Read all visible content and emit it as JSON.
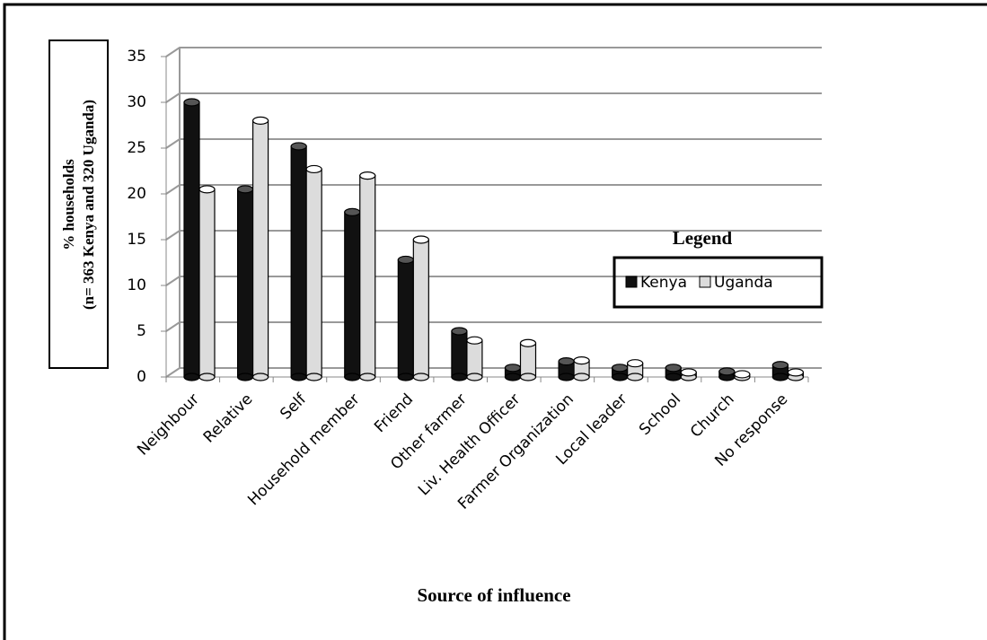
{
  "chart_data": {
    "type": "bar",
    "y_label_line1": "% households",
    "y_label_line2": "(n= 363 Kenya and 320 Uganda)",
    "x_label": "Source of influence",
    "legend_title": "Legend",
    "categories": [
      "Neighbour",
      "Relative",
      "Self",
      "Household member",
      "Friend",
      "Other farmer",
      "Liv. Health Officer",
      "Farmer Organization",
      "Local leader",
      "School",
      "Church",
      "No response"
    ],
    "series": [
      {
        "name": "Kenya",
        "color": "#111111",
        "values": [
          30,
          20.5,
          25.2,
          18,
          12.8,
          5,
          1,
          1.7,
          1,
          1,
          0.6,
          1.3
        ]
      },
      {
        "name": "Uganda",
        "color": "#dcdcdc",
        "values": [
          20.5,
          28,
          22.7,
          22,
          15,
          4,
          3.7,
          1.8,
          1.5,
          0.5,
          0.3,
          0.5
        ]
      }
    ],
    "ylim": [
      0,
      35
    ],
    "yticks": [
      0,
      5,
      10,
      15,
      20,
      25,
      30,
      35
    ],
    "grid": true
  }
}
